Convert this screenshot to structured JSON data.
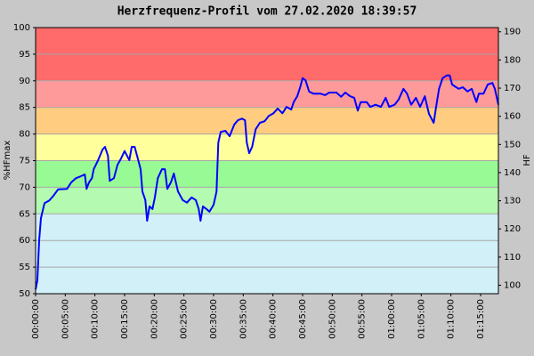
{
  "chart_data": {
    "type": "line",
    "title": "Herzfrequenz-Profil vom 27.02.2020 18:39:57",
    "ylabel": "%HFmax",
    "y2label": "HF",
    "xlim": [
      0,
      78
    ],
    "ylim": [
      50,
      100
    ],
    "y2lim": [
      97,
      191.5
    ],
    "yticks": [
      50,
      55,
      60,
      65,
      70,
      75,
      80,
      85,
      90,
      95,
      100
    ],
    "y2ticks": [
      100,
      110,
      120,
      130,
      140,
      150,
      160,
      170,
      180,
      190
    ],
    "xticks": [
      {
        "value": 0,
        "label": "00:00:00"
      },
      {
        "value": 5,
        "label": "00:05:00"
      },
      {
        "value": 10,
        "label": "00:10:00"
      },
      {
        "value": 15,
        "label": "00:15:00"
      },
      {
        "value": 20,
        "label": "00:20:00"
      },
      {
        "value": 25,
        "label": "00:25:00"
      },
      {
        "value": 30,
        "label": "00:30:00"
      },
      {
        "value": 35,
        "label": "00:35:00"
      },
      {
        "value": 40,
        "label": "00:40:00"
      },
      {
        "value": 45,
        "label": "00:45:00"
      },
      {
        "value": 50,
        "label": "00:50:00"
      },
      {
        "value": 55,
        "label": "00:55:00"
      },
      {
        "value": 60,
        "label": "01:00:00"
      },
      {
        "value": 65,
        "label": "01:05:00"
      },
      {
        "value": 70,
        "label": "01:10:00"
      },
      {
        "value": 75,
        "label": "01:15:00"
      }
    ],
    "grid": true,
    "zones": [
      {
        "from": 50,
        "to": 65,
        "color": "#d2f0f8"
      },
      {
        "from": 65,
        "to": 70,
        "color": "#b4fab0"
      },
      {
        "from": 70,
        "to": 75,
        "color": "#98fa94"
      },
      {
        "from": 75,
        "to": 80,
        "color": "#ffff9c"
      },
      {
        "from": 80,
        "to": 85,
        "color": "#ffcc80"
      },
      {
        "from": 85,
        "to": 90,
        "color": "#ff9a9a"
      },
      {
        "from": 90,
        "to": 100,
        "color": "#ff6a6a"
      }
    ],
    "x": [
      0,
      0.3,
      0.6,
      0.9,
      1.5,
      2.3,
      3,
      3.8,
      5.3,
      6,
      6.8,
      7.5,
      8.3,
      8.6,
      9,
      9.5,
      9.8,
      10.5,
      11.3,
      11.7,
      12.2,
      12.5,
      13.2,
      13.8,
      14.4,
      15,
      15.8,
      16.2,
      16.7,
      17.3,
      17.7,
      18,
      18.5,
      18.8,
      19.2,
      19.7,
      20.1,
      20.6,
      21.3,
      21.8,
      22.2,
      22.8,
      23.3,
      24,
      24.8,
      25.5,
      26.3,
      27,
      27.5,
      27.8,
      28.2,
      28.8,
      29.3,
      30,
      30.5,
      30.8,
      31.2,
      32,
      32.7,
      33.5,
      34.1,
      34.8,
      35.3,
      35.6,
      36,
      36.5,
      37.1,
      37.8,
      38.6,
      39.3,
      40.1,
      40.8,
      41.6,
      42.3,
      43.1,
      43.5,
      44.1,
      44.6,
      45,
      45.5,
      46.1,
      46.8,
      48,
      48.8,
      49.5,
      50.7,
      51.5,
      52.2,
      53,
      53.7,
      54.3,
      54.8,
      55.8,
      56.4,
      57.3,
      58.2,
      59,
      59.6,
      60.5,
      61.2,
      62,
      62.6,
      63.3,
      64.1,
      64.8,
      65.6,
      66.3,
      67.1,
      67.5,
      68,
      68.6,
      69.3,
      69.8,
      70.2,
      71.3,
      72,
      72.8,
      73.5,
      74.3,
      74.7,
      75.5,
      76.2,
      77,
      77.4,
      78
    ],
    "series": [
      {
        "color": "#0000ff",
        "values": [
          50.8,
          52.5,
          60,
          64.2,
          67,
          67.5,
          68.4,
          69.6,
          69.7,
          70.9,
          71.7,
          72,
          72.4,
          69.7,
          70.9,
          71.7,
          73.4,
          75,
          77.1,
          77.6,
          75.9,
          71.2,
          71.7,
          74.2,
          75.4,
          76.8,
          75.1,
          77.6,
          77.6,
          75.1,
          73.4,
          69.2,
          67.6,
          63.7,
          66.4,
          65.9,
          68.1,
          71.7,
          73.4,
          73.4,
          69.7,
          70.9,
          72.6,
          69.2,
          67.6,
          67.1,
          68.1,
          67.6,
          65.9,
          63.7,
          66.4,
          65.9,
          65.4,
          66.7,
          69.2,
          78.4,
          80.4,
          80.6,
          79.6,
          81.8,
          82.6,
          82.9,
          82.6,
          78.4,
          76.4,
          77.6,
          80.9,
          82.1,
          82.4,
          83.4,
          83.9,
          84.8,
          83.9,
          85.1,
          84.6,
          86,
          87.1,
          88.8,
          90.5,
          90.1,
          88,
          87.6,
          87.6,
          87.3,
          87.8,
          87.8,
          87,
          87.8,
          87.1,
          86.8,
          84.4,
          86,
          86,
          85.1,
          85.5,
          85.1,
          86.8,
          85.1,
          85.5,
          86.5,
          88.5,
          87.6,
          85.5,
          86.8,
          85.1,
          87.1,
          83.8,
          82.1,
          85.1,
          88.5,
          90.5,
          91,
          91,
          89.3,
          88.5,
          88.8,
          88,
          88.5,
          86,
          87.6,
          87.6,
          89.3,
          89.6,
          88.5,
          85.5
        ]
      }
    ]
  }
}
